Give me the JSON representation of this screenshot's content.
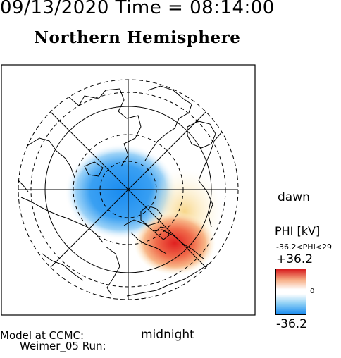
{
  "header": {
    "timestamp": "09/13/2020 Time = 08:14:00",
    "hemisphere": "Northern Hemisphere"
  },
  "map": {
    "orientation_labels": {
      "dawn": "dawn",
      "midnight": "midnight"
    },
    "potential_patterns": [
      {
        "name": "negative-cell",
        "sign": "negative",
        "color": "#1a8cf0"
      },
      {
        "name": "positive-cell",
        "sign": "positive",
        "color": "#e02020"
      }
    ]
  },
  "colorbar": {
    "title": "PHI [kV]",
    "range_text": "-36.2<PHI<29",
    "max_label": "+36.2",
    "zero_label": "0",
    "min_label": "-36.2",
    "colors": {
      "max": "#d7191c",
      "zero": "#ffffff",
      "min": "#1a8cf0"
    }
  },
  "footer": {
    "line1": "Model at CCMC:",
    "line2": "Weimer_05 Run:"
  }
}
